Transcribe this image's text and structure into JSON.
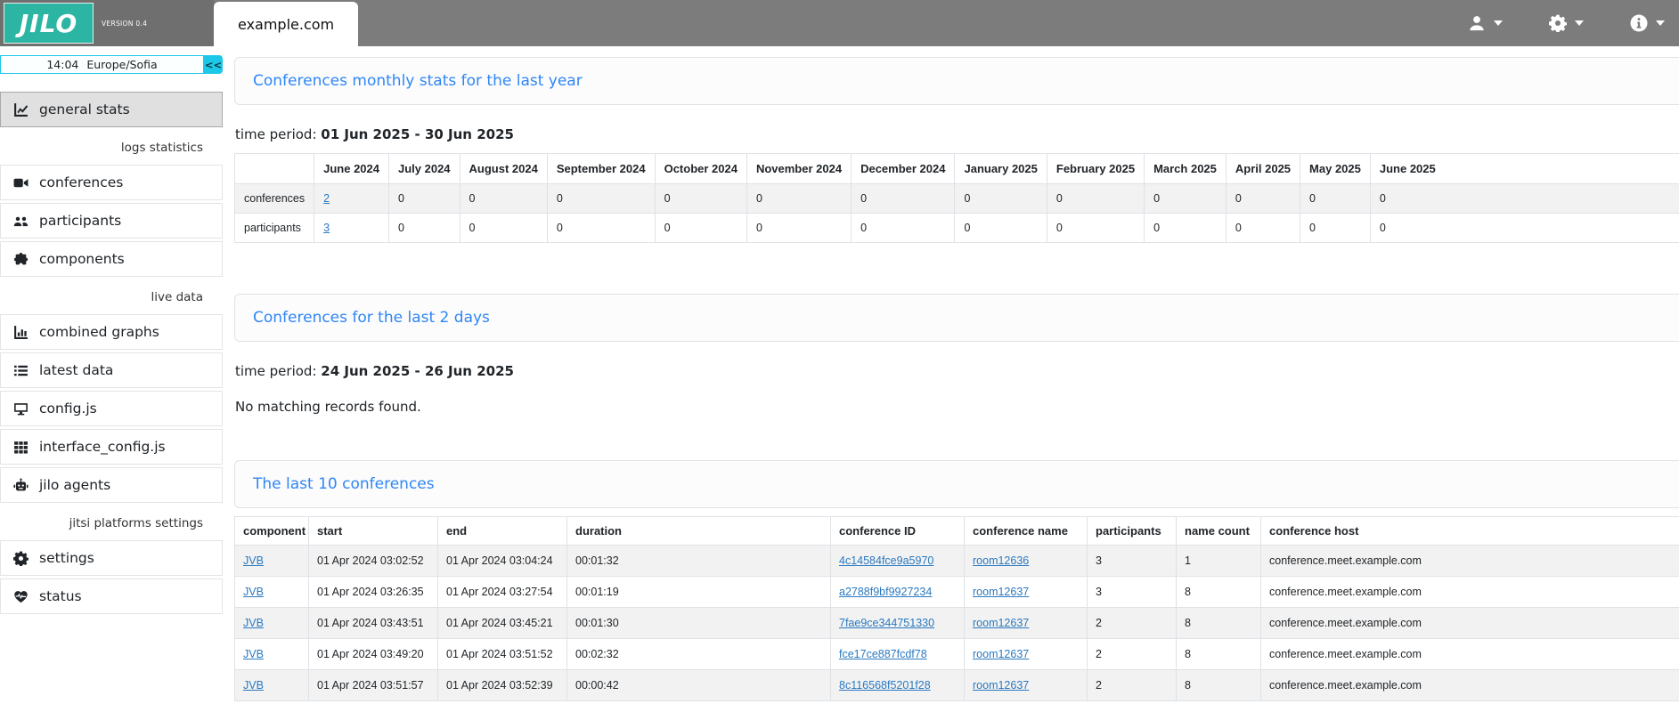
{
  "topbar": {
    "logo_text": "JILO",
    "version": "VERSION 0.4",
    "site_tab": "example.com",
    "menus": [
      {
        "icon": "user-icon"
      },
      {
        "icon": "gear-icon"
      },
      {
        "icon": "info-icon"
      }
    ]
  },
  "sidebar": {
    "clock": {
      "time": "14:04",
      "timezone": "Europe/Sofia"
    },
    "collapse_button": "<<",
    "headers": [
      "logs statistics",
      "live data",
      "jitsi platforms settings"
    ],
    "items": [
      {
        "label": "general stats",
        "icon": "chart-line-icon",
        "active": true
      },
      {
        "label": "conferences",
        "icon": "video-camera-icon",
        "active": false
      },
      {
        "label": "participants",
        "icon": "users-icon",
        "active": false
      },
      {
        "label": "components",
        "icon": "puzzle-icon",
        "active": false
      },
      {
        "label": "combined graphs",
        "icon": "chart-column-icon",
        "active": false
      },
      {
        "label": "latest data",
        "icon": "list-icon",
        "active": false
      },
      {
        "label": "config.js",
        "icon": "desktop-icon",
        "active": false
      },
      {
        "label": "interface_config.js",
        "icon": "grid-icon",
        "active": false
      },
      {
        "label": "jilo agents",
        "icon": "robot-icon",
        "active": false
      },
      {
        "label": "settings",
        "icon": "gear-icon",
        "active": false
      },
      {
        "label": "status",
        "icon": "heart-pulse-icon",
        "active": false
      }
    ]
  },
  "sections": {
    "monthly": {
      "title": "Conferences monthly stats for the last year",
      "time_period_label": "time period:",
      "time_period": "01 Jun 2025 - 30 Jun 2025",
      "table": {
        "columns": [
          "",
          "June 2024",
          "July 2024",
          "August 2024",
          "September 2024",
          "October 2024",
          "November 2024",
          "December 2024",
          "January 2025",
          "February 2025",
          "March 2025",
          "April 2025",
          "May 2025",
          "June 2025"
        ],
        "rows": [
          {
            "label": "conferences",
            "first_is_link": true,
            "values": [
              "2",
              "0",
              "0",
              "0",
              "0",
              "0",
              "0",
              "0",
              "0",
              "0",
              "0",
              "0",
              "0"
            ]
          },
          {
            "label": "participants",
            "first_is_link": true,
            "values": [
              "3",
              "0",
              "0",
              "0",
              "0",
              "0",
              "0",
              "0",
              "0",
              "0",
              "0",
              "0",
              "0"
            ]
          }
        ]
      }
    },
    "last2days": {
      "title": "Conferences for the last 2 days",
      "time_period_label": "time period:",
      "time_period": "24 Jun 2025 - 26 Jun 2025",
      "empty_message": "No matching records found."
    },
    "last10": {
      "title": "The last 10 conferences",
      "columns": [
        "component",
        "start",
        "end",
        "duration",
        "conference ID",
        "conference name",
        "participants",
        "name count",
        "conference host"
      ],
      "link_columns": [
        0,
        4,
        5
      ],
      "rows": [
        [
          "JVB",
          "01 Apr 2024 03:02:52",
          "01 Apr 2024 03:04:24",
          "00:01:32",
          "4c14584fce9a5970",
          "room12636",
          "3",
          "1",
          "conference.meet.example.com"
        ],
        [
          "JVB",
          "01 Apr 2024 03:26:35",
          "01 Apr 2024 03:27:54",
          "00:01:19",
          "a2788f9bf9927234",
          "room12637",
          "3",
          "8",
          "conference.meet.example.com"
        ],
        [
          "JVB",
          "01 Apr 2024 03:43:51",
          "01 Apr 2024 03:45:21",
          "00:01:30",
          "7fae9ce344751330",
          "room12637",
          "2",
          "8",
          "conference.meet.example.com"
        ],
        [
          "JVB",
          "01 Apr 2024 03:49:20",
          "01 Apr 2024 03:51:52",
          "00:02:32",
          "fce17ce887fcdf78",
          "room12637",
          "2",
          "8",
          "conference.meet.example.com"
        ],
        [
          "JVB",
          "01 Apr 2024 03:51:57",
          "01 Apr 2024 03:52:39",
          "00:00:42",
          "8c116568f5201f28",
          "room12637",
          "2",
          "8",
          "conference.meet.example.com"
        ]
      ]
    }
  },
  "colors": {
    "brand_teal": "#2cb5a3",
    "accent_cyan": "#1dc7e8",
    "title_blue": "#2e86f5",
    "link_blue": "#2a79c0",
    "topbar_gray": "#7c7c7c",
    "topbar_gray_dark": "#6f6f6f",
    "row_stripe": "#f2f2f2"
  }
}
